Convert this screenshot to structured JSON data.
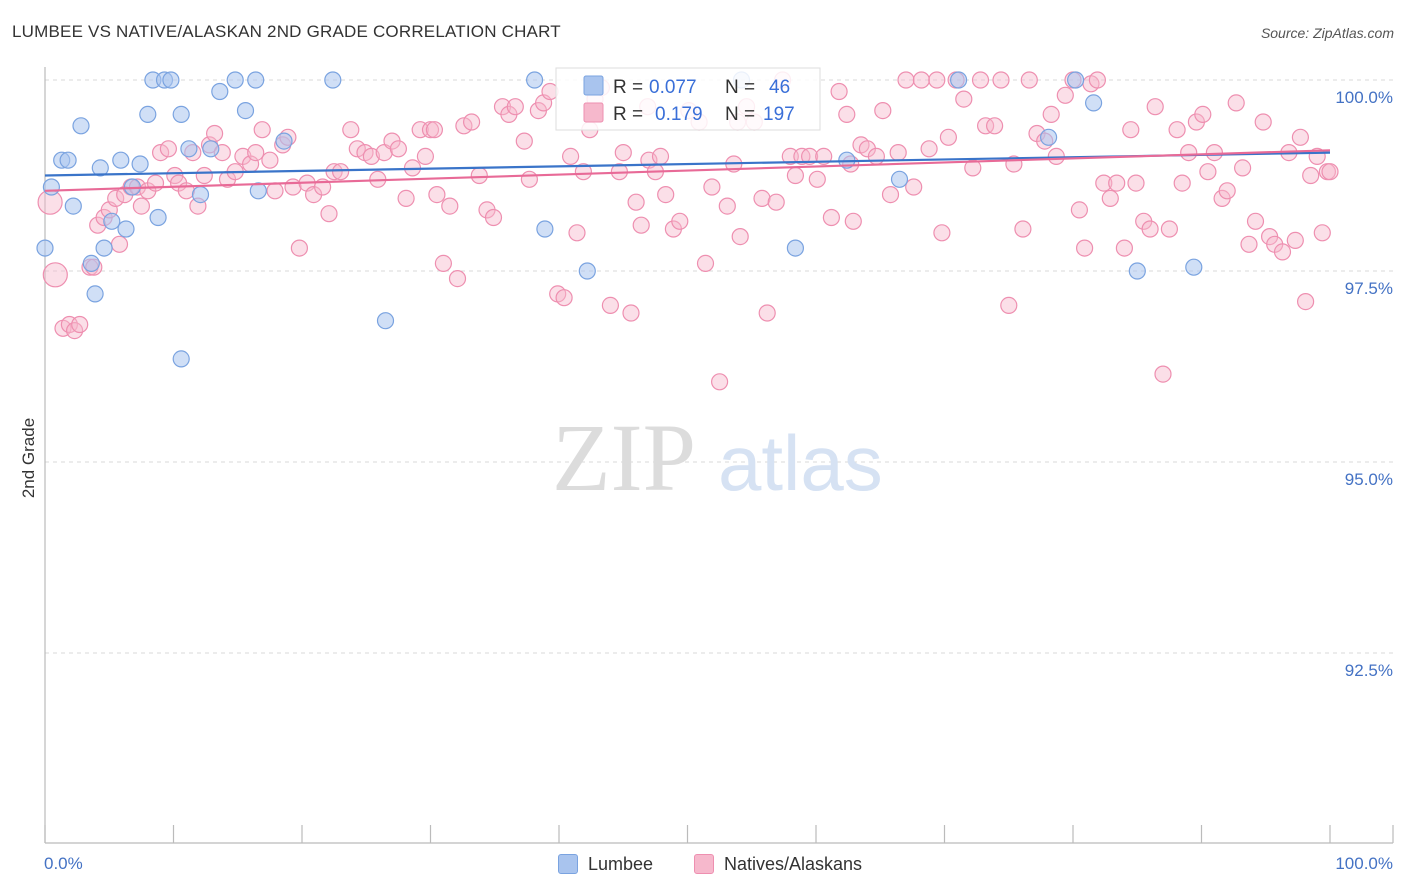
{
  "title": "LUMBEE VS NATIVE/ALASKAN 2ND GRADE CORRELATION CHART",
  "source": "Source: ZipAtlas.com",
  "watermark": {
    "zip": "ZIP",
    "atlas": "atlas"
  },
  "colors": {
    "lumbee_fill": "#a9c4ee",
    "lumbee_stroke": "#7aa3e0",
    "lumbee_line": "#3a74c9",
    "natives_fill": "#f6b8cc",
    "natives_stroke": "#ee8fb0",
    "natives_line": "#e86a97",
    "value_text": "#3a6fd8",
    "grid": "#d9d9d9"
  },
  "legend": {
    "rows": [
      {
        "r_label": "R =",
        "r_value": "0.077",
        "n_label": "N =",
        "n_value": "46"
      },
      {
        "r_label": "R =",
        "r_value": "0.179",
        "n_label": "N =",
        "n_value": "197"
      }
    ]
  },
  "bottom_legend": {
    "lumbee": "Lumbee",
    "natives": "Natives/Alaskans"
  },
  "chart_data": {
    "type": "scatter",
    "xlabel": "",
    "ylabel": "2nd Grade",
    "xlim": [
      0,
      100
    ],
    "ylim": [
      90.5,
      100.5
    ],
    "x_ticks": [
      "0.0%",
      "100.0%"
    ],
    "y_ticks": [
      {
        "value": 100.0,
        "label": "100.0%"
      },
      {
        "value": 97.5,
        "label": "97.5%"
      },
      {
        "value": 95.0,
        "label": "95.0%"
      },
      {
        "value": 92.5,
        "label": "92.5%"
      }
    ],
    "grid": "horizontal dashed",
    "series": [
      {
        "name": "Lumbee",
        "r": 0.077,
        "n": 46,
        "trend": {
          "x": [
            0,
            100
          ],
          "y": [
            98.75,
            99.05
          ]
        },
        "points": [
          [
            0.0,
            97.8
          ],
          [
            0.5,
            98.6
          ],
          [
            1.3,
            98.95
          ],
          [
            1.8,
            98.95
          ],
          [
            2.2,
            98.35
          ],
          [
            2.8,
            99.4
          ],
          [
            3.6,
            97.6
          ],
          [
            3.9,
            97.2
          ],
          [
            4.3,
            98.85
          ],
          [
            4.6,
            97.8
          ],
          [
            5.2,
            98.15
          ],
          [
            5.9,
            98.95
          ],
          [
            6.3,
            98.05
          ],
          [
            6.8,
            98.6
          ],
          [
            7.4,
            98.9
          ],
          [
            8.0,
            99.55
          ],
          [
            8.4,
            100.0
          ],
          [
            8.8,
            98.2
          ],
          [
            9.3,
            100.0
          ],
          [
            9.8,
            100.0
          ],
          [
            10.6,
            99.55
          ],
          [
            10.6,
            96.35
          ],
          [
            11.2,
            99.1
          ],
          [
            12.1,
            98.5
          ],
          [
            12.9,
            99.1
          ],
          [
            13.6,
            99.85
          ],
          [
            14.8,
            100.0
          ],
          [
            15.6,
            99.6
          ],
          [
            16.4,
            100.0
          ],
          [
            16.6,
            98.55
          ],
          [
            18.6,
            99.2
          ],
          [
            22.4,
            100.0
          ],
          [
            26.5,
            96.85
          ],
          [
            38.1,
            100.0
          ],
          [
            38.9,
            98.05
          ],
          [
            42.2,
            97.5
          ],
          [
            54.2,
            100.0
          ],
          [
            58.4,
            97.8
          ],
          [
            62.4,
            98.95
          ],
          [
            66.5,
            98.7
          ],
          [
            71.1,
            100.0
          ],
          [
            78.1,
            99.25
          ],
          [
            80.2,
            100.0
          ],
          [
            81.6,
            99.7
          ],
          [
            85.0,
            97.5
          ],
          [
            89.4,
            97.55
          ]
        ]
      },
      {
        "name": "Natives/Alaskans",
        "r": 0.179,
        "n": 197,
        "trend": {
          "x": [
            0,
            100
          ],
          "y": [
            98.55,
            99.08
          ]
        },
        "points": [
          [
            0.4,
            98.4
          ],
          [
            0.8,
            97.45
          ],
          [
            1.4,
            96.75
          ],
          [
            1.9,
            96.8
          ],
          [
            2.3,
            96.72
          ],
          [
            2.7,
            96.8
          ],
          [
            3.5,
            97.55
          ],
          [
            3.8,
            97.55
          ],
          [
            4.1,
            98.1
          ],
          [
            4.6,
            98.2
          ],
          [
            5.0,
            98.3
          ],
          [
            5.5,
            98.45
          ],
          [
            5.8,
            97.85
          ],
          [
            6.2,
            98.5
          ],
          [
            6.7,
            98.6
          ],
          [
            7.2,
            98.6
          ],
          [
            7.5,
            98.35
          ],
          [
            8.0,
            98.55
          ],
          [
            8.6,
            98.65
          ],
          [
            9.0,
            99.05
          ],
          [
            9.6,
            99.1
          ],
          [
            10.1,
            98.75
          ],
          [
            10.4,
            98.65
          ],
          [
            11.0,
            98.55
          ],
          [
            11.5,
            99.05
          ],
          [
            11.9,
            98.35
          ],
          [
            12.4,
            98.75
          ],
          [
            12.8,
            99.15
          ],
          [
            13.2,
            99.3
          ],
          [
            13.8,
            99.05
          ],
          [
            14.2,
            98.7
          ],
          [
            14.8,
            98.8
          ],
          [
            15.4,
            99.0
          ],
          [
            16.0,
            98.9
          ],
          [
            16.4,
            99.05
          ],
          [
            16.9,
            99.35
          ],
          [
            17.5,
            98.95
          ],
          [
            17.9,
            98.55
          ],
          [
            18.5,
            99.15
          ],
          [
            18.9,
            99.25
          ],
          [
            19.3,
            98.6
          ],
          [
            19.8,
            97.8
          ],
          [
            20.4,
            98.65
          ],
          [
            20.9,
            98.5
          ],
          [
            21.6,
            98.6
          ],
          [
            22.1,
            98.25
          ],
          [
            22.5,
            98.8
          ],
          [
            23.0,
            98.8
          ],
          [
            23.8,
            99.35
          ],
          [
            24.3,
            99.1
          ],
          [
            24.9,
            99.05
          ],
          [
            25.4,
            99.0
          ],
          [
            25.9,
            98.7
          ],
          [
            26.4,
            99.05
          ],
          [
            27.0,
            99.2
          ],
          [
            27.5,
            99.1
          ],
          [
            28.1,
            98.45
          ],
          [
            28.6,
            98.85
          ],
          [
            29.2,
            99.35
          ],
          [
            29.6,
            99.0
          ],
          [
            30.0,
            99.35
          ],
          [
            30.5,
            98.5
          ],
          [
            31.0,
            97.6
          ],
          [
            31.5,
            98.35
          ],
          [
            32.1,
            97.4
          ],
          [
            32.6,
            99.4
          ],
          [
            33.2,
            99.45
          ],
          [
            33.8,
            98.75
          ],
          [
            34.4,
            98.3
          ],
          [
            34.9,
            98.2
          ],
          [
            35.6,
            99.65
          ],
          [
            36.1,
            99.55
          ],
          [
            36.6,
            99.65
          ],
          [
            37.3,
            99.2
          ],
          [
            37.7,
            98.7
          ],
          [
            38.4,
            99.6
          ],
          [
            38.8,
            99.7
          ],
          [
            39.3,
            99.85
          ],
          [
            39.9,
            97.2
          ],
          [
            40.4,
            97.15
          ],
          [
            40.9,
            99.0
          ],
          [
            41.4,
            98.0
          ],
          [
            41.9,
            98.8
          ],
          [
            42.4,
            99.35
          ],
          [
            42.8,
            99.75
          ],
          [
            43.3,
            99.9
          ],
          [
            44.0,
            97.05
          ],
          [
            44.7,
            98.8
          ],
          [
            45.0,
            99.05
          ],
          [
            45.6,
            96.95
          ],
          [
            46.0,
            98.4
          ],
          [
            46.4,
            98.1
          ],
          [
            47.0,
            98.95
          ],
          [
            47.5,
            98.8
          ],
          [
            47.9,
            99.0
          ],
          [
            48.3,
            98.5
          ],
          [
            48.9,
            98.05
          ],
          [
            49.4,
            98.15
          ],
          [
            50.1,
            99.6
          ],
          [
            50.9,
            99.45
          ],
          [
            51.4,
            97.6
          ],
          [
            51.9,
            98.6
          ],
          [
            52.5,
            96.05
          ],
          [
            53.1,
            98.35
          ],
          [
            53.6,
            98.9
          ],
          [
            54.1,
            97.95
          ],
          [
            54.6,
            99.65
          ],
          [
            55.2,
            99.45
          ],
          [
            55.8,
            98.45
          ],
          [
            56.2,
            96.95
          ],
          [
            56.9,
            98.4
          ],
          [
            57.4,
            100.0
          ],
          [
            58.0,
            99.0
          ],
          [
            58.4,
            98.75
          ],
          [
            58.9,
            99.0
          ],
          [
            59.5,
            99.0
          ],
          [
            60.1,
            98.7
          ],
          [
            60.6,
            99.0
          ],
          [
            61.2,
            98.2
          ],
          [
            61.8,
            99.85
          ],
          [
            62.4,
            99.55
          ],
          [
            62.9,
            98.15
          ],
          [
            63.5,
            99.15
          ],
          [
            64.0,
            99.1
          ],
          [
            64.7,
            99.0
          ],
          [
            65.2,
            99.6
          ],
          [
            65.8,
            98.5
          ],
          [
            66.4,
            99.05
          ],
          [
            67.0,
            100.0
          ],
          [
            67.6,
            98.6
          ],
          [
            68.2,
            100.0
          ],
          [
            68.8,
            99.1
          ],
          [
            69.4,
            100.0
          ],
          [
            69.8,
            98.0
          ],
          [
            70.3,
            99.25
          ],
          [
            70.9,
            100.0
          ],
          [
            71.5,
            99.75
          ],
          [
            72.2,
            98.85
          ],
          [
            72.8,
            100.0
          ],
          [
            73.2,
            99.4
          ],
          [
            73.9,
            99.4
          ],
          [
            74.4,
            100.0
          ],
          [
            75.0,
            97.05
          ],
          [
            75.4,
            98.9
          ],
          [
            76.1,
            98.05
          ],
          [
            76.6,
            100.0
          ],
          [
            77.2,
            99.3
          ],
          [
            77.8,
            99.2
          ],
          [
            78.3,
            99.55
          ],
          [
            78.7,
            99.0
          ],
          [
            79.4,
            99.8
          ],
          [
            80.0,
            100.0
          ],
          [
            80.5,
            98.3
          ],
          [
            80.9,
            97.8
          ],
          [
            81.4,
            99.95
          ],
          [
            81.9,
            100.0
          ],
          [
            82.4,
            98.65
          ],
          [
            82.9,
            98.45
          ],
          [
            83.4,
            98.65
          ],
          [
            84.0,
            97.8
          ],
          [
            84.5,
            99.35
          ],
          [
            84.9,
            98.65
          ],
          [
            85.5,
            98.15
          ],
          [
            86.0,
            98.05
          ],
          [
            86.4,
            99.65
          ],
          [
            87.0,
            96.15
          ],
          [
            87.5,
            98.05
          ],
          [
            88.1,
            99.35
          ],
          [
            88.5,
            98.65
          ],
          [
            89.0,
            99.05
          ],
          [
            89.6,
            99.45
          ],
          [
            90.1,
            99.55
          ],
          [
            90.5,
            98.8
          ],
          [
            91.0,
            99.05
          ],
          [
            91.6,
            98.45
          ],
          [
            92.0,
            98.55
          ],
          [
            92.7,
            99.7
          ],
          [
            93.2,
            98.85
          ],
          [
            93.7,
            97.85
          ],
          [
            94.2,
            98.15
          ],
          [
            94.8,
            99.45
          ],
          [
            95.3,
            97.95
          ],
          [
            95.7,
            97.85
          ],
          [
            96.3,
            97.75
          ],
          [
            96.8,
            99.05
          ],
          [
            97.3,
            97.9
          ],
          [
            97.7,
            99.25
          ],
          [
            98.1,
            97.1
          ],
          [
            98.5,
            98.75
          ],
          [
            99.0,
            99.0
          ],
          [
            99.4,
            98.0
          ],
          [
            99.8,
            98.8
          ],
          [
            100.0,
            98.8
          ],
          [
            62.7,
            98.9
          ],
          [
            46.9,
            99.65
          ],
          [
            30.3,
            99.35
          ],
          [
            53.9,
            99.45
          ]
        ]
      }
    ]
  }
}
